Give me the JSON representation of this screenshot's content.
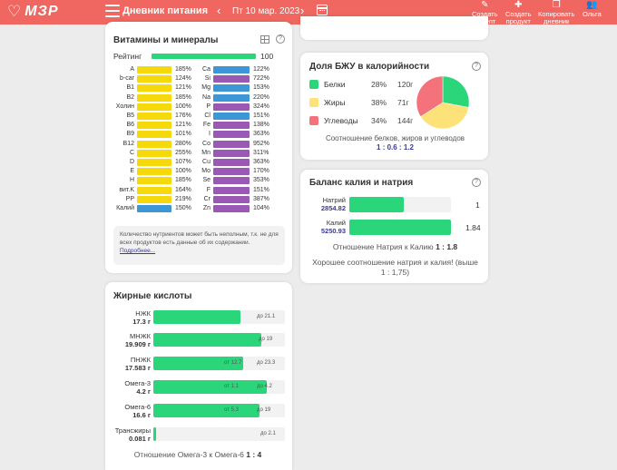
{
  "header": {
    "logo": "МЗР",
    "title": "Дневник питания",
    "date": "Пт 10 мар. 2023",
    "tools": [
      {
        "label1": "Создать",
        "label2": "рецепт"
      },
      {
        "label1": "Создать",
        "label2": "продукт"
      },
      {
        "label1": "Копировать",
        "label2": "дневник"
      },
      {
        "label1": "Ольга",
        "label2": ""
      }
    ]
  },
  "vitamins": {
    "title": "Витамины и минералы",
    "rating_label": "Рейтинг",
    "rating_value": "100",
    "colors": {
      "yellow": "#f5d90a",
      "blue": "#3d96d6",
      "purple": "#9b59b6"
    },
    "left": [
      {
        "name": "A",
        "pct": "185%"
      },
      {
        "name": "b-car",
        "pct": "124%"
      },
      {
        "name": "B1",
        "pct": "121%"
      },
      {
        "name": "B2",
        "pct": "185%"
      },
      {
        "name": "Холин",
        "pct": "100%"
      },
      {
        "name": "B5",
        "pct": "176%"
      },
      {
        "name": "B6",
        "pct": "121%"
      },
      {
        "name": "B9",
        "pct": "101%"
      },
      {
        "name": "B12",
        "pct": "280%"
      },
      {
        "name": "C",
        "pct": "255%"
      },
      {
        "name": "D",
        "pct": "107%"
      },
      {
        "name": "E",
        "pct": "100%"
      },
      {
        "name": "H",
        "pct": "185%"
      },
      {
        "name": "вит.K",
        "pct": "164%"
      },
      {
        "name": "PP",
        "pct": "219%"
      },
      {
        "name": "Калий",
        "pct": "150%"
      }
    ],
    "right": [
      {
        "name": "Ca",
        "pct": "122%"
      },
      {
        "name": "Si",
        "pct": "722%"
      },
      {
        "name": "Mg",
        "pct": "153%"
      },
      {
        "name": "Na",
        "pct": "220%"
      },
      {
        "name": "P",
        "pct": "324%"
      },
      {
        "name": "Cl",
        "pct": "151%"
      },
      {
        "name": "Fe",
        "pct": "138%"
      },
      {
        "name": "I",
        "pct": "363%"
      },
      {
        "name": "Co",
        "pct": "952%"
      },
      {
        "name": "Mn",
        "pct": "311%"
      },
      {
        "name": "Cu",
        "pct": "363%"
      },
      {
        "name": "Mo",
        "pct": "170%"
      },
      {
        "name": "Se",
        "pct": "353%"
      },
      {
        "name": "F",
        "pct": "151%"
      },
      {
        "name": "Cr",
        "pct": "387%"
      },
      {
        "name": "Zn",
        "pct": "104%"
      }
    ],
    "note_text": "Количество нутриентов может быть неполным, т.к. не для всех продуктов есть данные об их содержании.",
    "note_link": "Подробнее..."
  },
  "fatty": {
    "title": "Жирные кислоты",
    "rows": [
      {
        "name": "НЖК",
        "value": "17.3 г",
        "fill": 0.66,
        "mark1": "",
        "mark2": "до 21.1"
      },
      {
        "name": "МНЖК",
        "value": "19.909 г",
        "fill": 0.82,
        "mark1": "",
        "mark2": "до 19"
      },
      {
        "name": "ПНЖК",
        "value": "17.583 г",
        "fill": 0.68,
        "mark1": "от 12.7",
        "mark2": "до 23.3"
      },
      {
        "name": "Омега-3",
        "value": "4.2 г",
        "fill": 0.86,
        "mark1": "от 1.1",
        "mark2": "до 4.2"
      },
      {
        "name": "Омега-6",
        "value": "16.6 г",
        "fill": 0.81,
        "mark1": "от 5.3",
        "mark2": "до 19"
      },
      {
        "name": "Трансжиры",
        "value": "0.081 г",
        "fill": 0.02,
        "mark1": "",
        "mark2": "до 2.1"
      }
    ],
    "ratio_text": "Отношение Омега-3 к Омега-6",
    "ratio_value": "1 : 4"
  },
  "bju": {
    "title": "Доля БЖУ в калорийности",
    "rows": [
      {
        "name": "Белки",
        "pct": "28%",
        "grams": "120г",
        "color": "#2bd67b"
      },
      {
        "name": "Жиры",
        "pct": "38%",
        "grams": "71г",
        "color": "#fde27a"
      },
      {
        "name": "Углеводы",
        "pct": "34%",
        "grams": "144г",
        "color": "#f4727a"
      }
    ],
    "ratio_text": "Соотношение белков, жиров и углеводов",
    "ratio_value": "1 : 0.6 : 1.2"
  },
  "kna": {
    "title": "Баланс калия и натрия",
    "sodium_label": "Натрий",
    "sodium_value": "2854.82",
    "sodium_fill": 0.54,
    "sodium_ratio": "1",
    "potassium_label": "Калий",
    "potassium_value": "5250.93",
    "potassium_fill": 1.0,
    "potassium_ratio": "1.84",
    "ratio_text": "Отношение Натрия к Калию",
    "ratio_value": "1 : 1.8",
    "comment1": "Хорошее соотношение натрия и калия! (выше",
    "comment2": "1 : 1,75)"
  }
}
